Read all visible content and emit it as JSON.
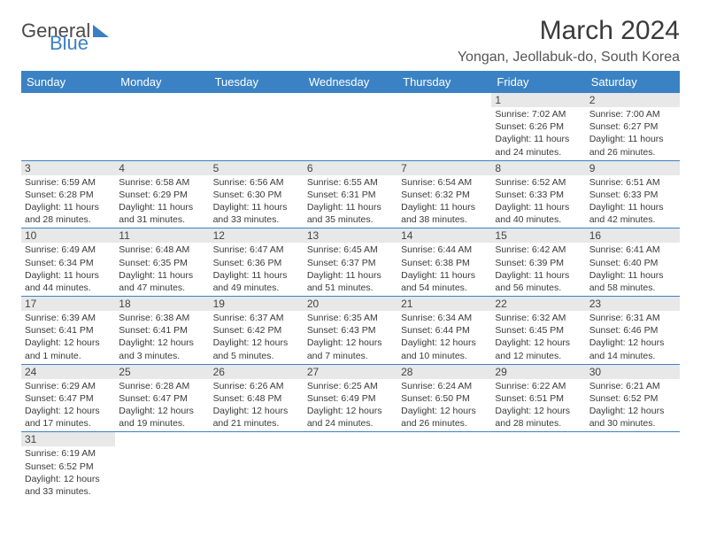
{
  "brand": {
    "textGeneral": "General",
    "textBlue": "Blue",
    "sailColor": "#3b7fc4",
    "textColorGeneral": "#4a4a4a",
    "textColorBlue": "#3b7fc4"
  },
  "title": {
    "month": "March 2024",
    "location": "Yongan, Jeollabuk-do, South Korea"
  },
  "colors": {
    "headerBg": "#3b82c4",
    "headerText": "#ffffff",
    "dayNumBg": "#e8e8e8",
    "rowBorder": "#3b82c4",
    "bodyText": "#3a3a3a"
  },
  "dayHeaders": [
    "Sunday",
    "Monday",
    "Tuesday",
    "Wednesday",
    "Thursday",
    "Friday",
    "Saturday"
  ],
  "weeks": [
    [
      {
        "empty": true
      },
      {
        "empty": true
      },
      {
        "empty": true
      },
      {
        "empty": true
      },
      {
        "empty": true
      },
      {
        "num": "1",
        "sunrise": "Sunrise: 7:02 AM",
        "sunset": "Sunset: 6:26 PM",
        "daylight": "Daylight: 11 hours and 24 minutes."
      },
      {
        "num": "2",
        "sunrise": "Sunrise: 7:00 AM",
        "sunset": "Sunset: 6:27 PM",
        "daylight": "Daylight: 11 hours and 26 minutes."
      }
    ],
    [
      {
        "num": "3",
        "sunrise": "Sunrise: 6:59 AM",
        "sunset": "Sunset: 6:28 PM",
        "daylight": "Daylight: 11 hours and 28 minutes."
      },
      {
        "num": "4",
        "sunrise": "Sunrise: 6:58 AM",
        "sunset": "Sunset: 6:29 PM",
        "daylight": "Daylight: 11 hours and 31 minutes."
      },
      {
        "num": "5",
        "sunrise": "Sunrise: 6:56 AM",
        "sunset": "Sunset: 6:30 PM",
        "daylight": "Daylight: 11 hours and 33 minutes."
      },
      {
        "num": "6",
        "sunrise": "Sunrise: 6:55 AM",
        "sunset": "Sunset: 6:31 PM",
        "daylight": "Daylight: 11 hours and 35 minutes."
      },
      {
        "num": "7",
        "sunrise": "Sunrise: 6:54 AM",
        "sunset": "Sunset: 6:32 PM",
        "daylight": "Daylight: 11 hours and 38 minutes."
      },
      {
        "num": "8",
        "sunrise": "Sunrise: 6:52 AM",
        "sunset": "Sunset: 6:33 PM",
        "daylight": "Daylight: 11 hours and 40 minutes."
      },
      {
        "num": "9",
        "sunrise": "Sunrise: 6:51 AM",
        "sunset": "Sunset: 6:33 PM",
        "daylight": "Daylight: 11 hours and 42 minutes."
      }
    ],
    [
      {
        "num": "10",
        "sunrise": "Sunrise: 6:49 AM",
        "sunset": "Sunset: 6:34 PM",
        "daylight": "Daylight: 11 hours and 44 minutes."
      },
      {
        "num": "11",
        "sunrise": "Sunrise: 6:48 AM",
        "sunset": "Sunset: 6:35 PM",
        "daylight": "Daylight: 11 hours and 47 minutes."
      },
      {
        "num": "12",
        "sunrise": "Sunrise: 6:47 AM",
        "sunset": "Sunset: 6:36 PM",
        "daylight": "Daylight: 11 hours and 49 minutes."
      },
      {
        "num": "13",
        "sunrise": "Sunrise: 6:45 AM",
        "sunset": "Sunset: 6:37 PM",
        "daylight": "Daylight: 11 hours and 51 minutes."
      },
      {
        "num": "14",
        "sunrise": "Sunrise: 6:44 AM",
        "sunset": "Sunset: 6:38 PM",
        "daylight": "Daylight: 11 hours and 54 minutes."
      },
      {
        "num": "15",
        "sunrise": "Sunrise: 6:42 AM",
        "sunset": "Sunset: 6:39 PM",
        "daylight": "Daylight: 11 hours and 56 minutes."
      },
      {
        "num": "16",
        "sunrise": "Sunrise: 6:41 AM",
        "sunset": "Sunset: 6:40 PM",
        "daylight": "Daylight: 11 hours and 58 minutes."
      }
    ],
    [
      {
        "num": "17",
        "sunrise": "Sunrise: 6:39 AM",
        "sunset": "Sunset: 6:41 PM",
        "daylight": "Daylight: 12 hours and 1 minute."
      },
      {
        "num": "18",
        "sunrise": "Sunrise: 6:38 AM",
        "sunset": "Sunset: 6:41 PM",
        "daylight": "Daylight: 12 hours and 3 minutes."
      },
      {
        "num": "19",
        "sunrise": "Sunrise: 6:37 AM",
        "sunset": "Sunset: 6:42 PM",
        "daylight": "Daylight: 12 hours and 5 minutes."
      },
      {
        "num": "20",
        "sunrise": "Sunrise: 6:35 AM",
        "sunset": "Sunset: 6:43 PM",
        "daylight": "Daylight: 12 hours and 7 minutes."
      },
      {
        "num": "21",
        "sunrise": "Sunrise: 6:34 AM",
        "sunset": "Sunset: 6:44 PM",
        "daylight": "Daylight: 12 hours and 10 minutes."
      },
      {
        "num": "22",
        "sunrise": "Sunrise: 6:32 AM",
        "sunset": "Sunset: 6:45 PM",
        "daylight": "Daylight: 12 hours and 12 minutes."
      },
      {
        "num": "23",
        "sunrise": "Sunrise: 6:31 AM",
        "sunset": "Sunset: 6:46 PM",
        "daylight": "Daylight: 12 hours and 14 minutes."
      }
    ],
    [
      {
        "num": "24",
        "sunrise": "Sunrise: 6:29 AM",
        "sunset": "Sunset: 6:47 PM",
        "daylight": "Daylight: 12 hours and 17 minutes."
      },
      {
        "num": "25",
        "sunrise": "Sunrise: 6:28 AM",
        "sunset": "Sunset: 6:47 PM",
        "daylight": "Daylight: 12 hours and 19 minutes."
      },
      {
        "num": "26",
        "sunrise": "Sunrise: 6:26 AM",
        "sunset": "Sunset: 6:48 PM",
        "daylight": "Daylight: 12 hours and 21 minutes."
      },
      {
        "num": "27",
        "sunrise": "Sunrise: 6:25 AM",
        "sunset": "Sunset: 6:49 PM",
        "daylight": "Daylight: 12 hours and 24 minutes."
      },
      {
        "num": "28",
        "sunrise": "Sunrise: 6:24 AM",
        "sunset": "Sunset: 6:50 PM",
        "daylight": "Daylight: 12 hours and 26 minutes."
      },
      {
        "num": "29",
        "sunrise": "Sunrise: 6:22 AM",
        "sunset": "Sunset: 6:51 PM",
        "daylight": "Daylight: 12 hours and 28 minutes."
      },
      {
        "num": "30",
        "sunrise": "Sunrise: 6:21 AM",
        "sunset": "Sunset: 6:52 PM",
        "daylight": "Daylight: 12 hours and 30 minutes."
      }
    ],
    [
      {
        "num": "31",
        "sunrise": "Sunrise: 6:19 AM",
        "sunset": "Sunset: 6:52 PM",
        "daylight": "Daylight: 12 hours and 33 minutes."
      },
      {
        "empty": true
      },
      {
        "empty": true
      },
      {
        "empty": true
      },
      {
        "empty": true
      },
      {
        "empty": true
      },
      {
        "empty": true
      }
    ]
  ]
}
